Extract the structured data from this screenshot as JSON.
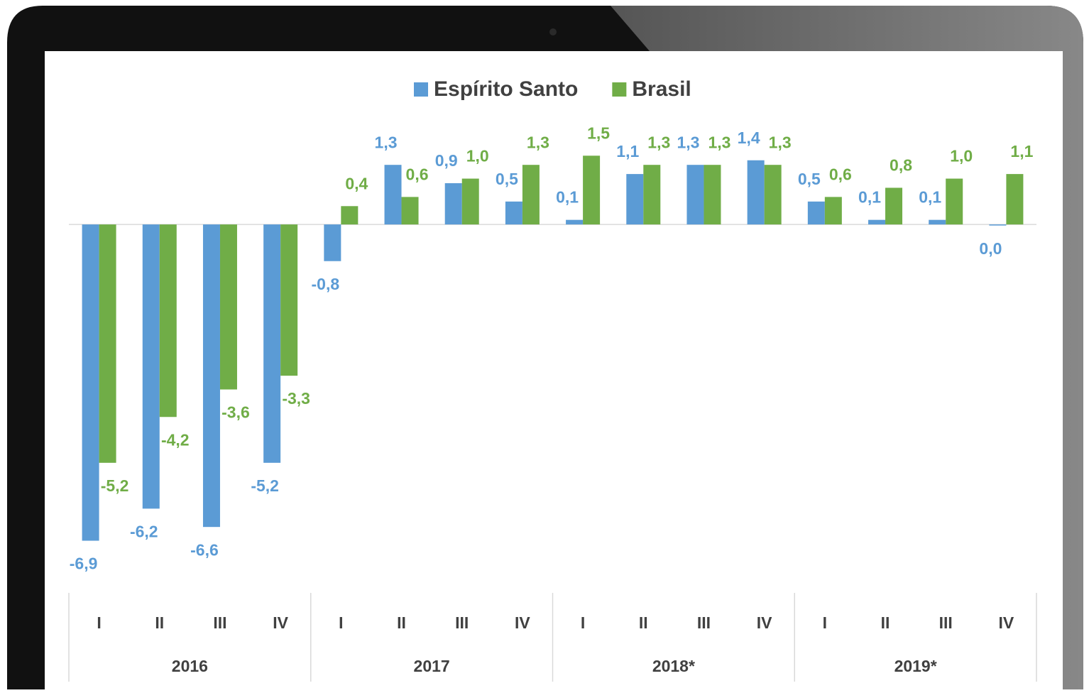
{
  "chart_data": {
    "type": "bar",
    "categories": [
      "I",
      "II",
      "III",
      "IV",
      "I",
      "II",
      "III",
      "IV",
      "I",
      "II",
      "III",
      "IV",
      "I",
      "II",
      "III",
      "IV"
    ],
    "category_groups": [
      "2016",
      "2017",
      "2018*",
      "2019*"
    ],
    "ylim": [
      -7,
      2
    ],
    "legend": "top",
    "series": [
      {
        "name": "Espírito Santo",
        "color": "#5b9bd5",
        "values": [
          -6.9,
          -6.2,
          -6.6,
          -5.2,
          -0.8,
          1.3,
          0.9,
          0.5,
          0.1,
          1.1,
          1.3,
          1.4,
          0.5,
          0.1,
          0.1,
          0.0
        ],
        "value_labels": [
          "-6,9",
          "-6,2",
          "-6,6",
          "-5,2",
          "-0,8",
          "1,3",
          "0,9",
          "0,5",
          "0,1",
          "1,1",
          "1,3",
          "1,4",
          "0,5",
          "0,1",
          "0,1",
          "0,0"
        ]
      },
      {
        "name": "Brasil",
        "color": "#70ad47",
        "values": [
          -5.2,
          -4.2,
          -3.6,
          -3.3,
          0.4,
          0.6,
          1.0,
          1.3,
          1.5,
          1.3,
          1.3,
          1.3,
          0.6,
          0.8,
          1.0,
          1.1
        ],
        "value_labels": [
          "-5,2",
          "-4,2",
          "-3,6",
          "-3,3",
          "0,4",
          "0,6",
          "1,0",
          "1,3",
          "1,5",
          "1,3",
          "1,3",
          "1,3",
          "0,6",
          "0,8",
          "1,0",
          "1,1"
        ]
      }
    ]
  }
}
